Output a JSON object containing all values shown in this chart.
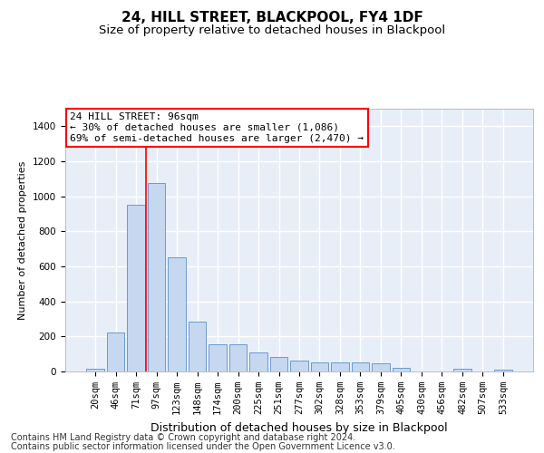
{
  "title": "24, HILL STREET, BLACKPOOL, FY4 1DF",
  "subtitle": "Size of property relative to detached houses in Blackpool",
  "xlabel": "Distribution of detached houses by size in Blackpool",
  "ylabel": "Number of detached properties",
  "categories": [
    "20sqm",
    "46sqm",
    "71sqm",
    "97sqm",
    "123sqm",
    "148sqm",
    "174sqm",
    "200sqm",
    "225sqm",
    "251sqm",
    "277sqm",
    "302sqm",
    "328sqm",
    "353sqm",
    "379sqm",
    "405sqm",
    "430sqm",
    "456sqm",
    "482sqm",
    "507sqm",
    "533sqm"
  ],
  "values": [
    15,
    225,
    950,
    1075,
    650,
    285,
    155,
    155,
    110,
    85,
    60,
    50,
    50,
    50,
    45,
    20,
    0,
    0,
    15,
    0,
    10
  ],
  "bar_color": "#c5d8f0",
  "bar_edge_color": "#5b8fc7",
  "background_color": "#e8eef8",
  "annotation_box_text": "24 HILL STREET: 96sqm\n← 30% of detached houses are smaller (1,086)\n69% of semi-detached houses are larger (2,470) →",
  "red_line_bar_index": 3,
  "ylim": [
    0,
    1500
  ],
  "yticks": [
    0,
    200,
    400,
    600,
    800,
    1000,
    1200,
    1400
  ],
  "footnote_line1": "Contains HM Land Registry data © Crown copyright and database right 2024.",
  "footnote_line2": "Contains public sector information licensed under the Open Government Licence v3.0.",
  "title_fontsize": 11,
  "subtitle_fontsize": 9.5,
  "xlabel_fontsize": 9,
  "ylabel_fontsize": 8,
  "tick_fontsize": 7.5,
  "annotation_fontsize": 8,
  "footnote_fontsize": 7
}
